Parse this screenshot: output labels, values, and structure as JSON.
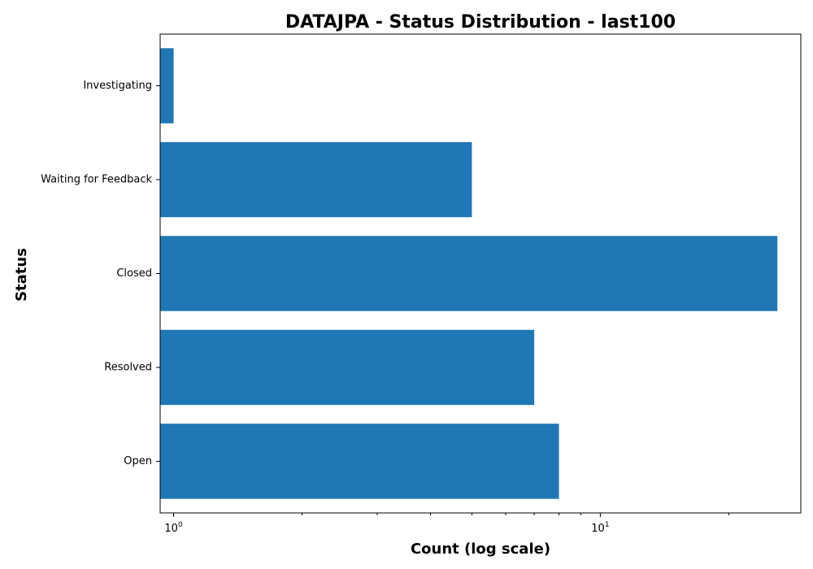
{
  "chart_data": {
    "type": "bar",
    "orientation": "horizontal",
    "title": "DATAJPA - Status Distribution - last100",
    "xlabel": "Count (log scale)",
    "ylabel": "Status",
    "xscale": "log",
    "xlim": [
      0.93,
      29.5
    ],
    "x_ticks": [
      {
        "value": 1,
        "base": "10",
        "exp": "0"
      },
      {
        "value": 10,
        "base": "10",
        "exp": "1"
      }
    ],
    "categories": [
      "Investigating",
      "Waiting for Feedback",
      "Closed",
      "Resolved",
      "Open"
    ],
    "values": [
      1,
      5,
      26,
      7,
      8
    ],
    "bar_color": "#1f77b4",
    "grid": false,
    "legend": "none"
  }
}
